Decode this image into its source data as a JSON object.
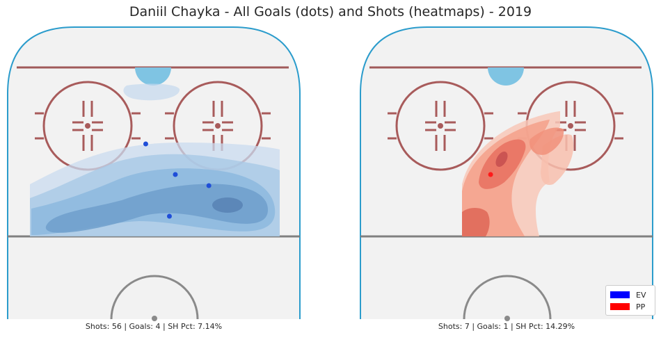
{
  "title": "Daniil Chayka - All Goals (dots) and Shots (heatmaps) - 2019",
  "chart_data": [
    {
      "type": "heatmap",
      "situation": "EV",
      "color": "#1f5fd6",
      "goal_color": "#1f4ed8",
      "goals": [
        {
          "x": 70,
          "y": 63
        },
        {
          "x": 85,
          "y": 52
        },
        {
          "x": 102,
          "y": 48
        },
        {
          "x": 82,
          "y": 37
        }
      ],
      "caption": "Shots: 56 | Goals: 4 | SH Pct: 7.14%"
    },
    {
      "type": "heatmap",
      "situation": "PP",
      "color": "#e8452e",
      "goal_color": "#ff1a1a",
      "goals": [
        {
          "x": 66,
          "y": 52
        }
      ],
      "caption": "Shots: 7 | Goals: 1 | SH Pct: 14.29%"
    }
  ],
  "legend": {
    "entries": [
      {
        "label": "EV",
        "color": "#0000ff"
      },
      {
        "label": "PP",
        "color": "#ff0000"
      }
    ]
  }
}
